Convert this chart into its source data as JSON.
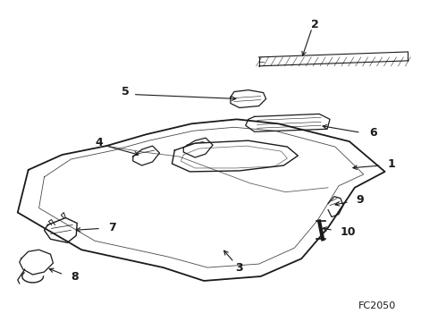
{
  "bg_color": "#ffffff",
  "line_color": "#1a1a1a",
  "fig_code": "FC2050"
}
